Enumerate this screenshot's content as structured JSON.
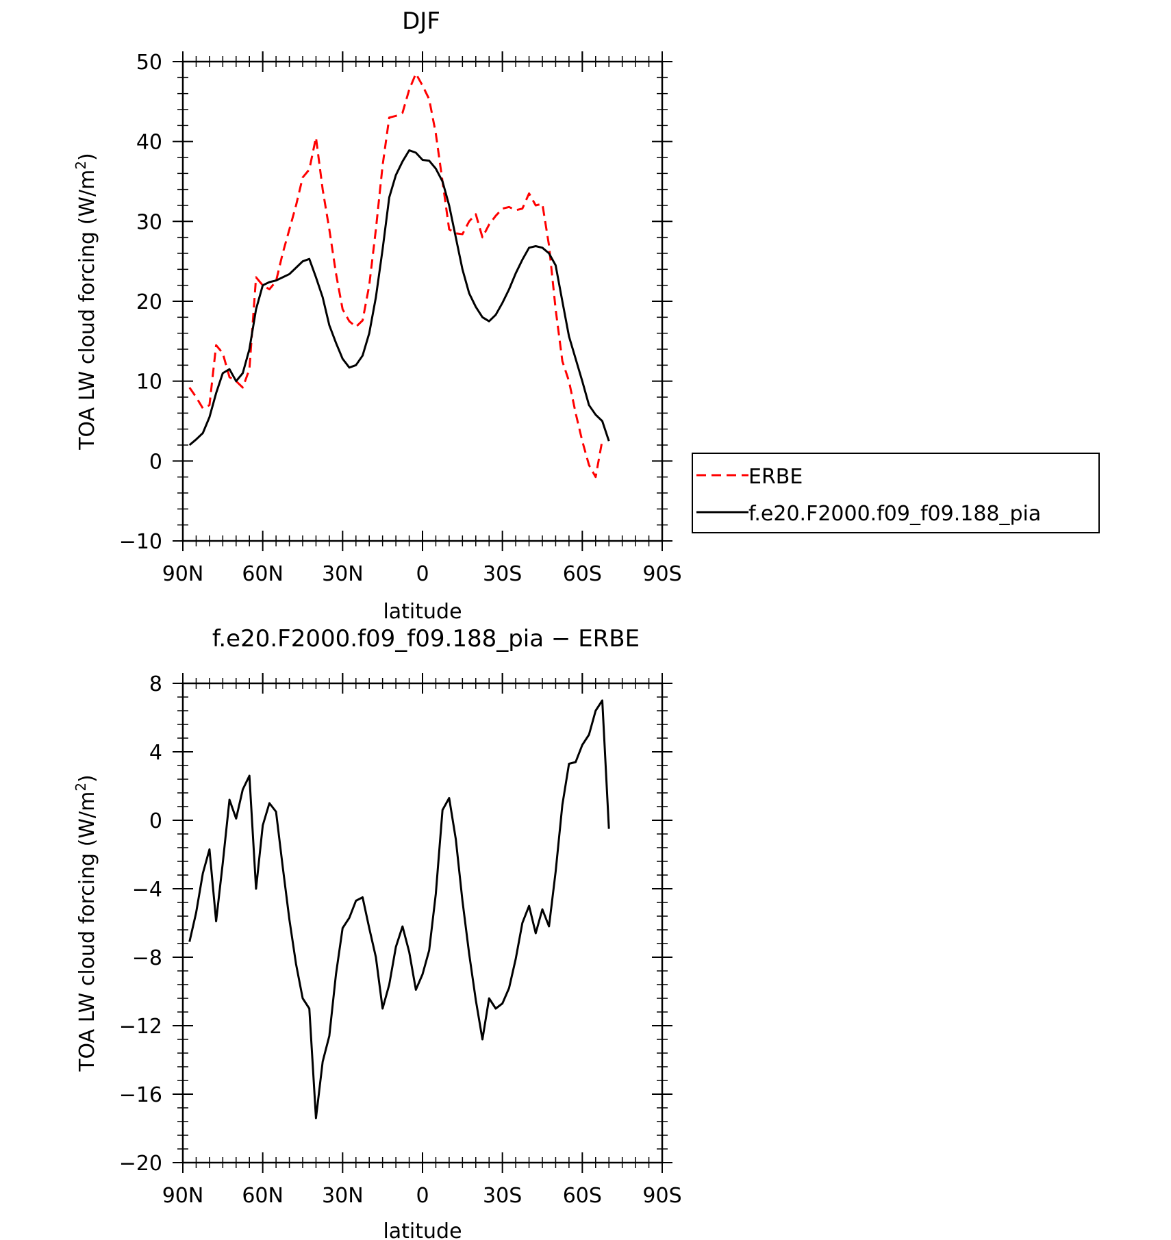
{
  "chart_data": [
    {
      "type": "line",
      "title": "DJF",
      "xlabel": "latitude",
      "ylabel": "TOA LW cloud forcing (W/m",
      "ylabel_sup": "2",
      "ylabel_end": ")",
      "xlim": [
        -90,
        90
      ],
      "ylim": [
        -10,
        50
      ],
      "x_ticks": [
        {
          "value": -90,
          "label": "90N"
        },
        {
          "value": -60,
          "label": "60N"
        },
        {
          "value": -30,
          "label": "30N"
        },
        {
          "value": 0,
          "label": "0"
        },
        {
          "value": 30,
          "label": "30S"
        },
        {
          "value": 60,
          "label": "60S"
        },
        {
          "value": 90,
          "label": "90S"
        }
      ],
      "y_ticks": [
        {
          "value": -10,
          "label": "−10"
        },
        {
          "value": 0,
          "label": "0"
        },
        {
          "value": 10,
          "label": "10"
        },
        {
          "value": 20,
          "label": "20"
        },
        {
          "value": 30,
          "label": "30"
        },
        {
          "value": 40,
          "label": "40"
        },
        {
          "value": 50,
          "label": "50"
        }
      ],
      "legend": "right",
      "series": [
        {
          "name": "ERBE",
          "color": "#ff0000",
          "style": "dashed",
          "points": [
            [
              -87.5,
              9.2
            ],
            [
              -85,
              8
            ],
            [
              -82.5,
              6.6
            ],
            [
              -80,
              7
            ],
            [
              -77.5,
              14.5
            ],
            [
              -75,
              13.5
            ],
            [
              -72.5,
              10.5
            ],
            [
              -70,
              10
            ],
            [
              -67.5,
              9.2
            ],
            [
              -65,
              11.5
            ],
            [
              -62.5,
              23
            ],
            [
              -60,
              22
            ],
            [
              -57.5,
              21.5
            ],
            [
              -55,
              22.5
            ],
            [
              -52.5,
              26
            ],
            [
              -50,
              29
            ],
            [
              -47.5,
              32
            ],
            [
              -45,
              35.5
            ],
            [
              -42.5,
              36.5
            ],
            [
              -40,
              40.5
            ],
            [
              -37.5,
              34
            ],
            [
              -35,
              29
            ],
            [
              -32.5,
              23.5
            ],
            [
              -30,
              19
            ],
            [
              -27.5,
              17.5
            ],
            [
              -25,
              16.8
            ],
            [
              -22.5,
              17.6
            ],
            [
              -20,
              22
            ],
            [
              -17.5,
              29
            ],
            [
              -15,
              37
            ],
            [
              -12.5,
              43
            ],
            [
              -10,
              43.2
            ],
            [
              -7.5,
              43.6
            ],
            [
              -5,
              46.5
            ],
            [
              -2.5,
              48.5
            ],
            [
              0,
              47
            ],
            [
              2.5,
              45.3
            ],
            [
              5,
              41
            ],
            [
              7.5,
              35
            ],
            [
              10,
              29
            ],
            [
              12.5,
              28.5
            ],
            [
              15,
              28.4
            ],
            [
              17.5,
              30
            ],
            [
              20,
              30.9
            ],
            [
              22.5,
              28
            ],
            [
              25,
              29.6
            ],
            [
              27.5,
              30.7
            ],
            [
              30,
              31.6
            ],
            [
              32.5,
              31.8
            ],
            [
              35,
              31.4
            ],
            [
              37.5,
              31.6
            ],
            [
              40,
              33.5
            ],
            [
              42.5,
              32
            ],
            [
              45,
              32.2
            ],
            [
              47.5,
              27
            ],
            [
              50,
              19
            ],
            [
              52.5,
              12.5
            ],
            [
              55,
              10
            ],
            [
              57.5,
              6
            ],
            [
              60,
              2.5
            ],
            [
              62.5,
              -0.5
            ],
            [
              65,
              -2
            ],
            [
              67.5,
              2.6
            ]
          ]
        },
        {
          "name": "f.e20.F2000.f09_f09.188_pia",
          "color": "#000000",
          "style": "solid",
          "points": [
            [
              -87.5,
              2
            ],
            [
              -85,
              2.7
            ],
            [
              -82.5,
              3.5
            ],
            [
              -80,
              5.5
            ],
            [
              -77.5,
              8.5
            ],
            [
              -75,
              11
            ],
            [
              -72.5,
              11.5
            ],
            [
              -70,
              10
            ],
            [
              -67.5,
              11
            ],
            [
              -65,
              14
            ],
            [
              -62.5,
              19
            ],
            [
              -60,
              22
            ],
            [
              -57.5,
              22.4
            ],
            [
              -55,
              22.6
            ],
            [
              -52.5,
              23
            ],
            [
              -50,
              23.4
            ],
            [
              -47.5,
              24.2
            ],
            [
              -45,
              25
            ],
            [
              -42.5,
              25.3
            ],
            [
              -40,
              23
            ],
            [
              -37.5,
              20.5
            ],
            [
              -35,
              17
            ],
            [
              -32.5,
              14.8
            ],
            [
              -30,
              12.8
            ],
            [
              -27.5,
              11.7
            ],
            [
              -25,
              12
            ],
            [
              -22.5,
              13.2
            ],
            [
              -20,
              16
            ],
            [
              -17.5,
              20.5
            ],
            [
              -15,
              26.5
            ],
            [
              -12.5,
              33
            ],
            [
              -10,
              35.8
            ],
            [
              -7.5,
              37.5
            ],
            [
              -5,
              38.9
            ],
            [
              -2.5,
              38.6
            ],
            [
              0,
              37.7
            ],
            [
              2.5,
              37.6
            ],
            [
              5,
              36.6
            ],
            [
              7.5,
              35
            ],
            [
              10,
              32
            ],
            [
              12.5,
              28
            ],
            [
              15,
              24
            ],
            [
              17.5,
              21
            ],
            [
              20,
              19.3
            ],
            [
              22.5,
              18
            ],
            [
              25,
              17.5
            ],
            [
              27.5,
              18.3
            ],
            [
              30,
              19.8
            ],
            [
              32.5,
              21.5
            ],
            [
              35,
              23.5
            ],
            [
              37.5,
              25.2
            ],
            [
              40,
              26.7
            ],
            [
              42.5,
              26.9
            ],
            [
              45,
              26.7
            ],
            [
              47.5,
              26
            ],
            [
              50,
              24.5
            ],
            [
              52.5,
              20
            ],
            [
              55,
              15.6
            ],
            [
              57.5,
              12.8
            ],
            [
              60,
              10
            ],
            [
              62.5,
              7
            ],
            [
              65,
              5.8
            ],
            [
              67.5,
              5
            ],
            [
              70,
              2.5
            ]
          ]
        }
      ]
    },
    {
      "type": "line",
      "title": "f.e20.F2000.f09_f09.188_pia − ERBE",
      "xlabel": "latitude",
      "ylabel": "TOA LW cloud forcing (W/m",
      "ylabel_sup": "2",
      "ylabel_end": ")",
      "xlim": [
        -90,
        90
      ],
      "ylim": [
        -20,
        8
      ],
      "x_ticks": [
        {
          "value": -90,
          "label": "90N"
        },
        {
          "value": -60,
          "label": "60N"
        },
        {
          "value": -30,
          "label": "30N"
        },
        {
          "value": 0,
          "label": "0"
        },
        {
          "value": 30,
          "label": "30S"
        },
        {
          "value": 60,
          "label": "60S"
        },
        {
          "value": 90,
          "label": "90S"
        }
      ],
      "y_ticks": [
        {
          "value": -20,
          "label": "−20"
        },
        {
          "value": -16,
          "label": "−16"
        },
        {
          "value": -12,
          "label": "−12"
        },
        {
          "value": -8,
          "label": "−8"
        },
        {
          "value": -4,
          "label": "−4"
        },
        {
          "value": 0,
          "label": "0"
        },
        {
          "value": 4,
          "label": "4"
        },
        {
          "value": 8,
          "label": "8"
        }
      ],
      "series": [
        {
          "color": "#000000",
          "style": "solid",
          "points": [
            [
              -87.5,
              -7.1
            ],
            [
              -85,
              -5.4
            ],
            [
              -82.5,
              -3.1
            ],
            [
              -80,
              -1.7
            ],
            [
              -77.5,
              -5.9
            ],
            [
              -75,
              -2.5
            ],
            [
              -72.5,
              1.2
            ],
            [
              -70,
              0.1
            ],
            [
              -67.5,
              1.8
            ],
            [
              -65,
              2.6
            ],
            [
              -62.5,
              -4
            ],
            [
              -60,
              -0.3
            ],
            [
              -57.5,
              1
            ],
            [
              -55,
              0.5
            ],
            [
              -52.5,
              -2.7
            ],
            [
              -50,
              -5.8
            ],
            [
              -47.5,
              -8.4
            ],
            [
              -45,
              -10.4
            ],
            [
              -42.5,
              -11
            ],
            [
              -40,
              -17.4
            ],
            [
              -37.5,
              -14.1
            ],
            [
              -35,
              -12.6
            ],
            [
              -32.5,
              -9
            ],
            [
              -30,
              -6.3
            ],
            [
              -27.5,
              -5.7
            ],
            [
              -25,
              -4.7
            ],
            [
              -22.5,
              -4.5
            ],
            [
              -20,
              -6.3
            ],
            [
              -17.5,
              -8
            ],
            [
              -15,
              -11
            ],
            [
              -12.5,
              -9.6
            ],
            [
              -10,
              -7.4
            ],
            [
              -7.5,
              -6.2
            ],
            [
              -5,
              -7.7
            ],
            [
              -2.5,
              -9.9
            ],
            [
              0,
              -9
            ],
            [
              2.5,
              -7.6
            ],
            [
              5,
              -4.3
            ],
            [
              7.5,
              0.6
            ],
            [
              10,
              1.3
            ],
            [
              12.5,
              -1.1
            ],
            [
              15,
              -4.7
            ],
            [
              17.5,
              -7.8
            ],
            [
              20,
              -10.5
            ],
            [
              22.5,
              -12.8
            ],
            [
              25,
              -10.4
            ],
            [
              27.5,
              -11
            ],
            [
              30,
              -10.7
            ],
            [
              32.5,
              -9.8
            ],
            [
              35,
              -8.1
            ],
            [
              37.5,
              -6
            ],
            [
              40,
              -5
            ],
            [
              42.5,
              -6.6
            ],
            [
              45,
              -5.2
            ],
            [
              47.5,
              -6.2
            ],
            [
              50,
              -3
            ],
            [
              52.5,
              0.9
            ],
            [
              55,
              3.3
            ],
            [
              57.5,
              3.4
            ],
            [
              60,
              4.4
            ],
            [
              62.5,
              5
            ],
            [
              65,
              6.4
            ],
            [
              67.5,
              7
            ],
            [
              70,
              -0.5
            ]
          ]
        }
      ]
    }
  ]
}
